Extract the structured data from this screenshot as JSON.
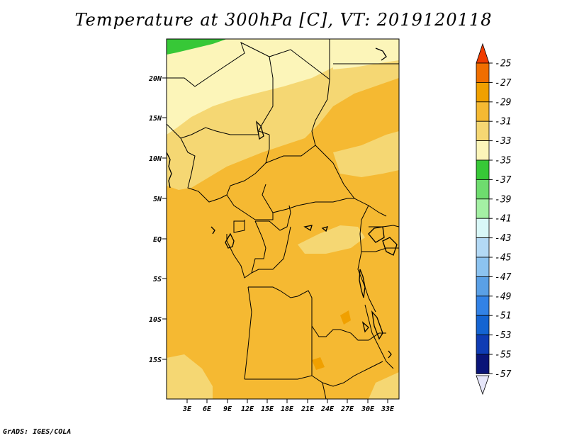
{
  "title": "Temperature at 300hPa [C], VT: 2019120118",
  "credit": "GrADS: IGES/COLA",
  "map": {
    "lon_labels": [
      "3E",
      "6E",
      "9E",
      "12E",
      "15E",
      "18E",
      "21E",
      "24E",
      "27E",
      "30E",
      "33E"
    ],
    "lat_labels": [
      "20N",
      "15N",
      "10N",
      "5N",
      "EQ",
      "5S",
      "10S",
      "15S"
    ]
  },
  "legend": {
    "labels": [
      "-25",
      "-27",
      "-29",
      "-31",
      "-33",
      "-35",
      "-37",
      "-39",
      "-41",
      "-43",
      "-45",
      "-47",
      "-49",
      "-51",
      "-53",
      "-55",
      "-57"
    ],
    "colors": [
      "#f03c00",
      "#f06e00",
      "#f0a000",
      "#f5b932",
      "#f5d773",
      "#fcf5b9",
      "#37c837",
      "#6edc6e",
      "#a4f0a4",
      "#d9f7f7",
      "#b3d9f5",
      "#8cc3f0",
      "#5aa0e6",
      "#3282e6",
      "#1464d2",
      "#0f3cb4",
      "#0a1478"
    ],
    "top_arrow_color": "#f03c00",
    "bottom_arrow_color": "#e6e6fa"
  }
}
